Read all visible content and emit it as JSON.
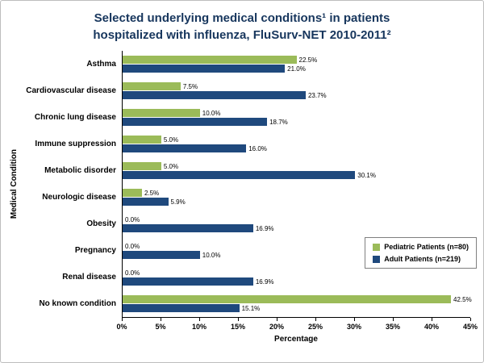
{
  "chart": {
    "title_line1": "Selected underlying medical conditions¹ in patients",
    "title_line2": "hospitalized with influenza, FluSurv-NET 2010-2011²",
    "ylabel": "Medical Condition",
    "xlabel": "Percentage"
  },
  "chart_data": {
    "type": "bar",
    "orientation": "horizontal",
    "title": "Selected underlying medical conditions in patients hospitalized with influenza, FluSurv-NET 2010-2011",
    "categories": [
      "Asthma",
      "Cardiovascular disease",
      "Chronic lung disease",
      "Immune suppression",
      "Metabolic disorder",
      "Neurologic disease",
      "Obesity",
      "Pregnancy",
      "Renal disease",
      "No known condition"
    ],
    "series": [
      {
        "name": "Pediatric Patients (n=80)",
        "color": "#9BBB59",
        "values": [
          22.5,
          7.5,
          10.0,
          5.0,
          5.0,
          2.5,
          0.0,
          0.0,
          0.0,
          42.5
        ]
      },
      {
        "name": "Adult Patients (n=219)",
        "color": "#1F497D",
        "values": [
          21.0,
          23.7,
          18.7,
          16.0,
          30.1,
          5.9,
          16.9,
          10.0,
          16.9,
          15.1
        ]
      }
    ],
    "xlabel": "Percentage",
    "ylabel": "Medical Condition",
    "xlim": [
      0,
      45
    ],
    "xticks": [
      "0%",
      "5%",
      "10%",
      "15%",
      "20%",
      "25%",
      "30%",
      "35%",
      "40%",
      "45%"
    ],
    "grid": false,
    "legend_position": "middle-right",
    "value_label_format": "0.0%",
    "colors": {
      "title": "#17365D",
      "axis": "#000000"
    }
  }
}
